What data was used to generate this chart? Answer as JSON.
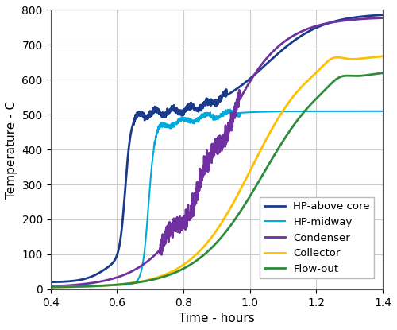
{
  "xlabel": "Time - hours",
  "ylabel": "Temperature - C",
  "xlim": [
    0.4,
    1.4
  ],
  "ylim": [
    0,
    800
  ],
  "xticks": [
    0.4,
    0.6,
    0.8,
    1.0,
    1.2,
    1.4
  ],
  "yticks": [
    0,
    100,
    200,
    300,
    400,
    500,
    600,
    700,
    800
  ],
  "series": [
    {
      "label": "HP-above core",
      "color": "#1a3a8c",
      "linewidth": 2.0
    },
    {
      "label": "HP-midway",
      "color": "#00aadd",
      "linewidth": 1.5
    },
    {
      "label": "Condenser",
      "color": "#7030a0",
      "linewidth": 2.0
    },
    {
      "label": "Collector",
      "color": "#ffc000",
      "linewidth": 2.0
    },
    {
      "label": "Flow-out",
      "color": "#2e8b3a",
      "linewidth": 2.0
    }
  ],
  "background_color": "#ffffff",
  "grid_color": "#cccccc"
}
